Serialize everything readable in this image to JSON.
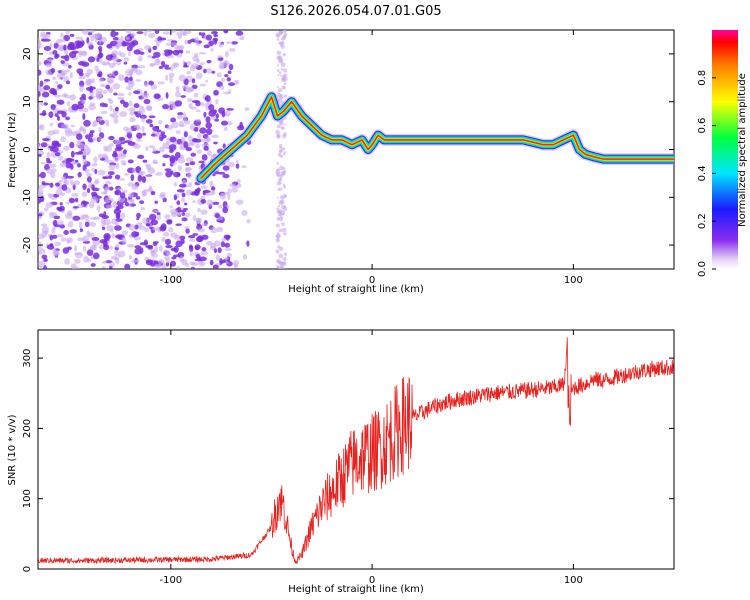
{
  "title": "S126.2026.054.07.01.G05",
  "colors": {
    "snr_line": "#e8231f",
    "axis": "#000000",
    "scatter": "#7a2be0",
    "scatter_light": "#c9a8f2"
  },
  "chart_data": [
    {
      "type": "heatmap",
      "name": "spectrogram",
      "xlabel": "Height of straight line (km)",
      "ylabel": "Frequency (Hz)",
      "xlim": [
        -166,
        150
      ],
      "ylim": [
        -25,
        25
      ],
      "xticks": [
        -100,
        0,
        100
      ],
      "xtick_labels": [
        "-100",
        "0",
        "100"
      ],
      "yticks": [
        -20,
        -10,
        0,
        10,
        20
      ],
      "ytick_labels": [
        "-20",
        "-10",
        "0",
        "10",
        "20"
      ],
      "colorbar": {
        "label": "Normalized spectral amplitude",
        "range": [
          0,
          1
        ],
        "ticks": [
          0.0,
          0.2,
          0.4,
          0.6,
          0.8
        ],
        "tick_labels": [
          "0.0",
          "0.2",
          "0.4",
          "0.6",
          "0.8"
        ]
      },
      "ridge": {
        "description": "Dominant frequency trace vs height",
        "x": [
          -85,
          -78,
          -70,
          -62,
          -55,
          -50,
          -47,
          -44,
          -40,
          -35,
          -30,
          -25,
          -20,
          -15,
          -10,
          -5,
          -2,
          0,
          3,
          6,
          10,
          20,
          40,
          60,
          75,
          85,
          90,
          95,
          100,
          103,
          106,
          110,
          115,
          130,
          150
        ],
        "y": [
          -6,
          -3,
          0,
          3,
          7,
          11,
          7,
          8,
          10,
          7,
          5,
          3,
          2,
          2,
          1,
          2,
          0,
          1,
          3,
          2,
          2,
          2,
          2,
          2,
          2,
          1,
          1,
          2,
          3,
          0,
          -1,
          -1.5,
          -2,
          -2,
          -2
        ]
      }
    },
    {
      "type": "line",
      "name": "snr",
      "xlabel": "Height of straight line (km)",
      "ylabel": "SNR (10 * v/v)",
      "xlim": [
        -166,
        150
      ],
      "ylim": [
        0,
        340
      ],
      "xticks": [
        -100,
        0,
        100
      ],
      "xtick_labels": [
        "-100",
        "0",
        "100"
      ],
      "yticks": [
        0,
        100,
        200,
        300
      ],
      "ytick_labels": [
        "0",
        "100",
        "200",
        "300"
      ],
      "series": [
        {
          "name": "SNR",
          "x": [
            -166,
            -140,
            -110,
            -80,
            -60,
            -50,
            -46,
            -44,
            -42,
            -40,
            -38,
            -35,
            -30,
            -25,
            -20,
            -15,
            -10,
            -5,
            0,
            5,
            10,
            15,
            20,
            30,
            40,
            50,
            60,
            70,
            80,
            90,
            95,
            97,
            98,
            99,
            100,
            105,
            110,
            115,
            120,
            130,
            140,
            150
          ],
          "y": [
            12,
            12,
            13,
            14,
            20,
            60,
            100,
            90,
            60,
            30,
            10,
            20,
            60,
            90,
            110,
            130,
            150,
            160,
            165,
            175,
            190,
            205,
            215,
            230,
            240,
            245,
            250,
            252,
            255,
            258,
            262,
            300,
            200,
            250,
            258,
            262,
            270,
            268,
            272,
            280,
            285,
            287
          ]
        }
      ]
    }
  ]
}
